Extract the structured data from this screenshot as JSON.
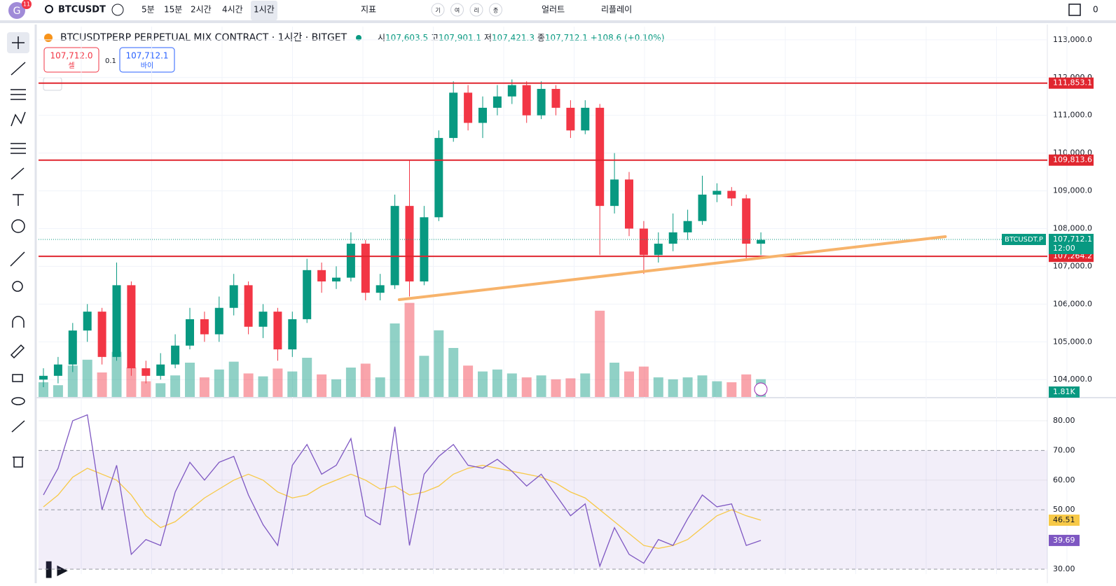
{
  "toolbar": {
    "badge": "11",
    "symbol": "BTCUSDT",
    "intervals": [
      "5분",
      "15분",
      "2시간",
      "4시간",
      "1시간"
    ],
    "indicators": "지표",
    "chips": [
      "기",
      "여",
      "리",
      "종"
    ],
    "alert": "얼러트",
    "replay": "리플레이",
    "count": "0"
  },
  "legend": {
    "title": "BTCUSDTPERP PERPETUAL MIX CONTRACT · 1시간 · BITGET",
    "ohlc": [
      {
        "label": "시",
        "value": "107,603.5"
      },
      {
        "label": "고",
        "value": "107,901.1"
      },
      {
        "label": "저",
        "value": "107,421.3"
      },
      {
        "label": "종",
        "value": "107,712.1"
      }
    ],
    "change": "+108.6 (+0.10%)"
  },
  "order": {
    "sell_price": "107,712.0",
    "sell": "셀",
    "qty": "0.1",
    "buy_price": "107,712.1",
    "buy": "바이"
  },
  "chart_data": {
    "type": "candlestick",
    "ylim": [
      103540,
      113350
    ],
    "yticks": [
      {
        "value": 104000,
        "label": "104,000.0"
      },
      {
        "value": 105000,
        "label": "105,000.0"
      },
      {
        "value": 106000,
        "label": "106,000.0"
      },
      {
        "value": 107000,
        "label": "107,000.0"
      },
      {
        "value": 108000,
        "label": "108,000.0"
      },
      {
        "value": 109000,
        "label": "109,000.0"
      },
      {
        "value": 110000,
        "label": "110,000.0"
      },
      {
        "value": 111000,
        "label": "111,000.0"
      },
      {
        "value": 112000,
        "label": "112,000.0"
      },
      {
        "value": 113000,
        "label": "113,000.0"
      }
    ],
    "candles": [
      [
        104000,
        104300,
        103800,
        104100
      ],
      [
        104100,
        104600,
        103900,
        104400
      ],
      [
        104400,
        105500,
        104200,
        105300
      ],
      [
        105300,
        106000,
        105000,
        105800
      ],
      [
        105800,
        105900,
        104400,
        104600
      ],
      [
        104600,
        107100,
        104500,
        106500
      ],
      [
        106500,
        106600,
        104100,
        104300
      ],
      [
        104300,
        104500,
        103900,
        104100
      ],
      [
        104100,
        104700,
        104000,
        104400
      ],
      [
        104400,
        105200,
        104300,
        104900
      ],
      [
        104900,
        105900,
        104800,
        105600
      ],
      [
        105600,
        105800,
        105000,
        105200
      ],
      [
        105200,
        106200,
        105000,
        105900
      ],
      [
        105900,
        106800,
        105700,
        106500
      ],
      [
        106500,
        106600,
        105200,
        105400
      ],
      [
        105400,
        106000,
        105100,
        105800
      ],
      [
        105800,
        105900,
        104500,
        104800
      ],
      [
        104800,
        105800,
        104600,
        105600
      ],
      [
        105600,
        107200,
        105500,
        106900
      ],
      [
        106900,
        107100,
        106300,
        106600
      ],
      [
        106600,
        107000,
        106400,
        106700
      ],
      [
        106700,
        107900,
        106600,
        107600
      ],
      [
        107600,
        107700,
        106100,
        106300
      ],
      [
        106300,
        106800,
        106100,
        106500
      ],
      [
        106500,
        108900,
        106400,
        108600
      ],
      [
        108600,
        109800,
        106200,
        106600
      ],
      [
        106600,
        108600,
        106500,
        108300
      ],
      [
        108300,
        110600,
        108200,
        110400
      ],
      [
        110400,
        111900,
        110300,
        111600
      ],
      [
        111600,
        111800,
        110600,
        110800
      ],
      [
        110800,
        111500,
        110400,
        111200
      ],
      [
        111200,
        111800,
        111000,
        111500
      ],
      [
        111500,
        111950,
        111300,
        111800
      ],
      [
        111800,
        111900,
        110800,
        111000
      ],
      [
        111000,
        111900,
        110900,
        111700
      ],
      [
        111700,
        111800,
        111000,
        111200
      ],
      [
        111200,
        111400,
        110400,
        110600
      ],
      [
        110600,
        111400,
        110500,
        111200
      ],
      [
        111200,
        111300,
        107300,
        108600
      ],
      [
        108600,
        110000,
        108400,
        109300
      ],
      [
        109300,
        109500,
        107800,
        108000
      ],
      [
        108000,
        108200,
        106800,
        107300
      ],
      [
        107300,
        107900,
        107100,
        107600
      ],
      [
        107600,
        108400,
        107400,
        107900
      ],
      [
        107900,
        108500,
        107700,
        108200
      ],
      [
        108200,
        109400,
        108100,
        108900
      ],
      [
        108900,
        109200,
        108700,
        109000
      ],
      [
        109000,
        109100,
        108600,
        108800
      ],
      [
        108800,
        108900,
        107200,
        107600
      ],
      [
        107600,
        107900,
        107300,
        107700
      ]
    ],
    "up_color": "#089981",
    "down_color": "#f23645",
    "levels": [
      {
        "value": 111853.1,
        "label": "111,853.1"
      },
      {
        "value": 109813.6,
        "label": "109,813.6"
      },
      {
        "value": 107264.2,
        "label": "107,264.2"
      }
    ],
    "level_color": "#e0262f",
    "last_price": {
      "value": 107712.1,
      "label": "107,712.1"
    },
    "symbol_tag": "BTCUSDT.P",
    "countdown": "12:00",
    "trendline": {
      "x": [
        24.3,
        61.6
      ],
      "values": [
        106117,
        107787
      ],
      "color": "#f7b36b"
    },
    "volume_ylim": [
      0,
      10
    ],
    "volume": [
      1.5,
      1.2,
      3.2,
      3.8,
      2.5,
      4.6,
      3.0,
      1.6,
      1.4,
      2.2,
      3.5,
      2.0,
      2.8,
      3.6,
      2.4,
      2.1,
      2.9,
      2.6,
      4.0,
      2.3,
      1.8,
      3.0,
      3.4,
      2.0,
      7.5,
      9.6,
      4.2,
      6.8,
      5.0,
      3.2,
      2.6,
      2.8,
      2.4,
      2.0,
      2.2,
      1.8,
      1.9,
      2.4,
      8.8,
      3.5,
      2.6,
      3.1,
      2.0,
      1.8,
      2.0,
      2.2,
      1.6,
      1.5,
      2.3,
      1.81
    ],
    "volume_last_label": "1.81K",
    "rsi_ylim": [
      28.35,
      87.3
    ],
    "rsi_yticks": [
      {
        "value": 30,
        "label": "30.00"
      },
      {
        "value": 50,
        "label": "50.00"
      },
      {
        "value": 60,
        "label": "60.00"
      },
      {
        "value": 70,
        "label": "70.00"
      },
      {
        "value": 80,
        "label": "80.00"
      }
    ],
    "rsi_band": [
      30,
      70
    ],
    "rsi": {
      "color": "#7e57c2",
      "values": [
        55,
        64,
        80,
        82,
        50,
        65,
        35,
        40,
        38,
        56,
        66,
        60,
        66,
        68,
        55,
        45,
        38,
        65,
        72,
        62,
        65,
        74,
        48,
        45,
        78,
        38,
        62,
        68,
        72,
        65,
        64,
        67,
        63,
        58,
        62,
        55,
        48,
        52,
        31,
        44,
        35,
        32,
        40,
        38,
        47,
        55,
        51,
        52,
        38,
        39.69
      ],
      "last_label": "39.69"
    },
    "rsi_ma": {
      "color": "#f7c948",
      "values": [
        51,
        55,
        61,
        64,
        62,
        60,
        55,
        48,
        44,
        46,
        50,
        54,
        57,
        60,
        62,
        60,
        56,
        54,
        55,
        58,
        60,
        62,
        60,
        57,
        58,
        55,
        56,
        58,
        62,
        64,
        65,
        64,
        63,
        62,
        61,
        59,
        56,
        54,
        50,
        46,
        42,
        38,
        37,
        38,
        40,
        44,
        48,
        50,
        48,
        46.51
      ],
      "last_label": "46.51"
    }
  }
}
